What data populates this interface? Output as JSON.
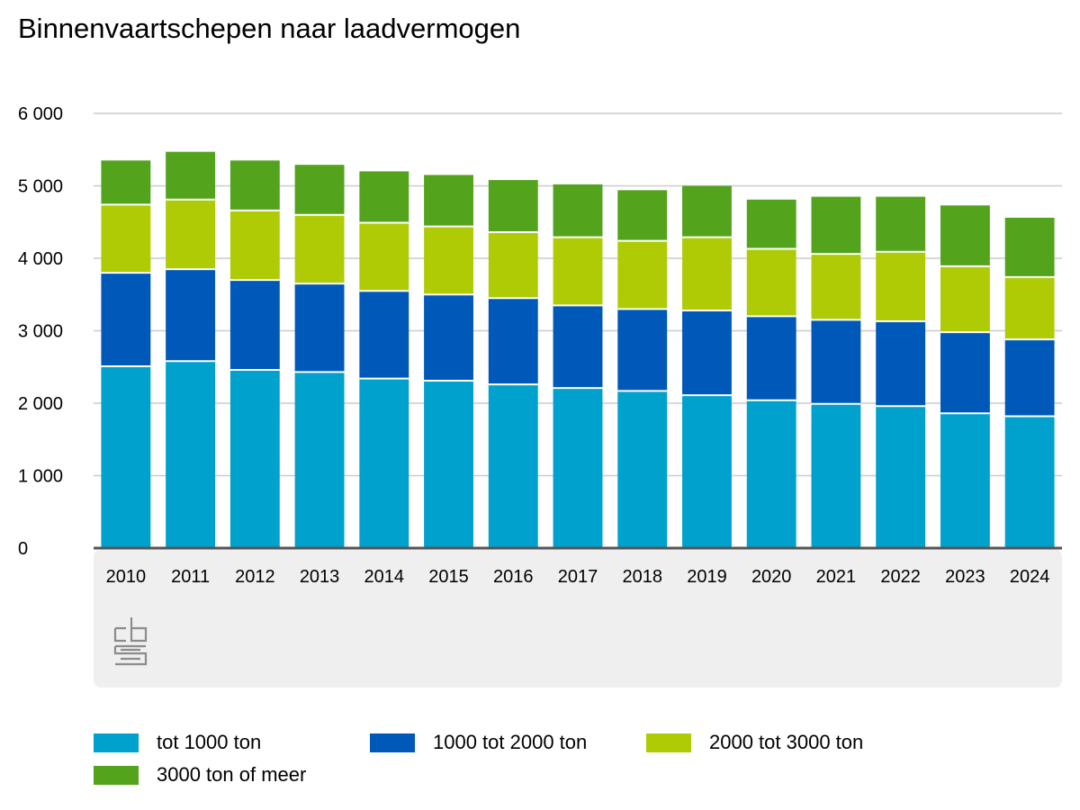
{
  "chart_data": {
    "type": "bar",
    "stacked": true,
    "title": "Binnenvaartschepen naar laadvermogen",
    "categories": [
      "2010",
      "2011",
      "2012",
      "2013",
      "2014",
      "2015",
      "2016",
      "2017",
      "2018",
      "2019",
      "2020",
      "2021",
      "2022",
      "2023",
      "2024"
    ],
    "series": [
      {
        "name": "tot 1000 ton",
        "color": "#00a1cd",
        "values": [
          2510,
          2580,
          2460,
          2430,
          2340,
          2310,
          2260,
          2210,
          2170,
          2110,
          2040,
          1990,
          1960,
          1860,
          1820
        ]
      },
      {
        "name": "1000 tot 2000 ton",
        "color": "#0058b8",
        "values": [
          1290,
          1270,
          1240,
          1220,
          1210,
          1190,
          1190,
          1140,
          1130,
          1170,
          1160,
          1160,
          1170,
          1120,
          1060
        ]
      },
      {
        "name": "2000 tot 3000 ton",
        "color": "#afcb05",
        "values": [
          940,
          960,
          960,
          950,
          940,
          940,
          910,
          940,
          940,
          1010,
          930,
          910,
          960,
          910,
          860
        ]
      },
      {
        "name": "3000 ton of meer",
        "color": "#53a31d",
        "values": [
          610,
          660,
          690,
          690,
          710,
          710,
          720,
          730,
          700,
          710,
          680,
          790,
          760,
          840,
          820
        ]
      }
    ],
    "yticks": [
      0,
      1000,
      2000,
      3000,
      4000,
      5000,
      6000
    ],
    "ytick_labels": [
      "0",
      "1 000",
      "2 000",
      "3 000",
      "4 000",
      "5 000",
      "6 000"
    ],
    "ylim": [
      0,
      6000
    ],
    "grid": true,
    "legend_position": "bottom"
  },
  "logo": {
    "icon": "cbs-logo-icon"
  }
}
